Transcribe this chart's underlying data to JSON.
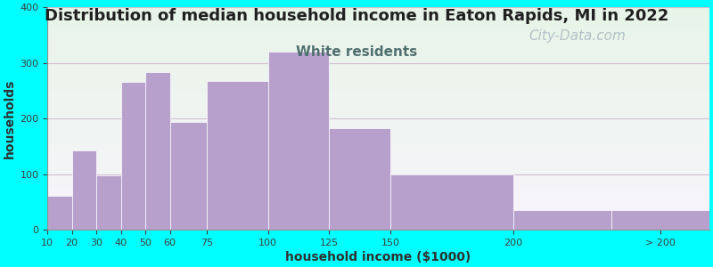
{
  "title": "Distribution of median household income in Eaton Rapids, MI in 2022",
  "subtitle": "White residents",
  "xlabel": "household income ($1000)",
  "ylabel": "households",
  "background_color": "#00FFFF",
  "bar_color": "#b8a0cc",
  "watermark": "City-Data.com",
  "left_edges": [
    10,
    20,
    30,
    40,
    50,
    60,
    75,
    100,
    125,
    150,
    200,
    240
  ],
  "bar_widths": [
    10,
    10,
    10,
    10,
    10,
    15,
    25,
    25,
    25,
    50,
    40,
    40
  ],
  "values": [
    60,
    143,
    97,
    265,
    283,
    193,
    268,
    320,
    182,
    100,
    35,
    35
  ],
  "xlim": [
    10,
    280
  ],
  "ylim": [
    0,
    400
  ],
  "yticks": [
    0,
    100,
    200,
    300,
    400
  ],
  "tick_positions": [
    10,
    20,
    30,
    40,
    50,
    60,
    75,
    100,
    125,
    150,
    200,
    260
  ],
  "tick_labels": [
    "10",
    "20",
    "30",
    "40",
    "50",
    "60",
    "75",
    "100",
    "125",
    "150",
    "200",
    "> 200"
  ],
  "title_fontsize": 13,
  "subtitle_fontsize": 11,
  "axis_label_fontsize": 10,
  "tick_fontsize": 8,
  "subtitle_color": "#507070",
  "title_color": "#202020",
  "watermark_color": "#a8b8c0",
  "watermark_fontsize": 11,
  "grid_color": "#d0c0d0",
  "plot_bg_colors": [
    "#e8f5e8",
    "#f8f4fc"
  ],
  "edgecolor": "white"
}
